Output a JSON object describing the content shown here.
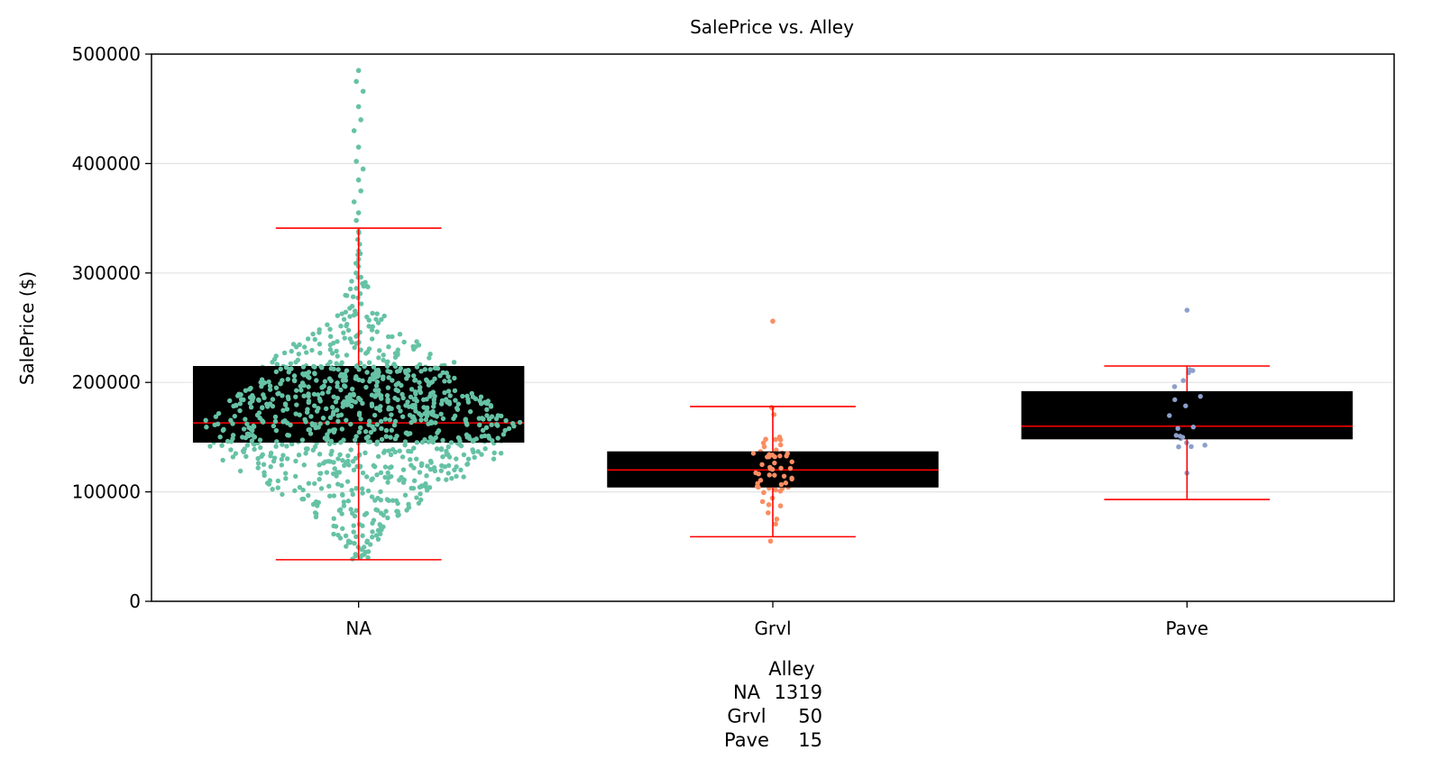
{
  "chart_data": {
    "type": "box",
    "title": "SalePrice vs. Alley",
    "ylabel": "SalePrice ($)",
    "ylim": [
      0,
      500000
    ],
    "yticks": [
      0,
      100000,
      200000,
      300000,
      400000,
      500000
    ],
    "grid": "horizontal",
    "categories": [
      "NA",
      "Grvl",
      "Pave"
    ],
    "boxes": [
      {
        "category": "NA",
        "whisker_low": 38000,
        "q1": 145000,
        "median": 163000,
        "q3": 215000,
        "whisker_high": 341000,
        "color": "#66c2a5",
        "n_points": 1319
      },
      {
        "category": "Grvl",
        "whisker_low": 59000,
        "q1": 104000,
        "median": 120000,
        "q3": 137000,
        "whisker_high": 178000,
        "color": "#fc8d62",
        "n_points": 50
      },
      {
        "category": "Pave",
        "whisker_low": 93000,
        "q1": 148000,
        "median": 160000,
        "q3": 192000,
        "whisker_high": 215000,
        "color": "#8da0cb",
        "n_points": 15
      }
    ],
    "outliers": [
      {
        "category": "NA",
        "values": [
          485000,
          475000,
          466000,
          452000,
          440000,
          430000,
          415000,
          402000,
          395000,
          385000,
          375000,
          365000,
          355000,
          348000
        ]
      },
      {
        "category": "Grvl",
        "values": [
          256000,
          55000
        ]
      },
      {
        "category": "Pave",
        "values": [
          266000
        ]
      }
    ],
    "box_fill": "#000000",
    "median_color": "#ff0000",
    "whisker_color": "#ff0000",
    "xlabel_block": {
      "title": "Alley",
      "rows": [
        {
          "label": "NA",
          "count": "1319"
        },
        {
          "label": "Grvl",
          "count": "50"
        },
        {
          "label": "Pave",
          "count": "15"
        }
      ]
    }
  }
}
